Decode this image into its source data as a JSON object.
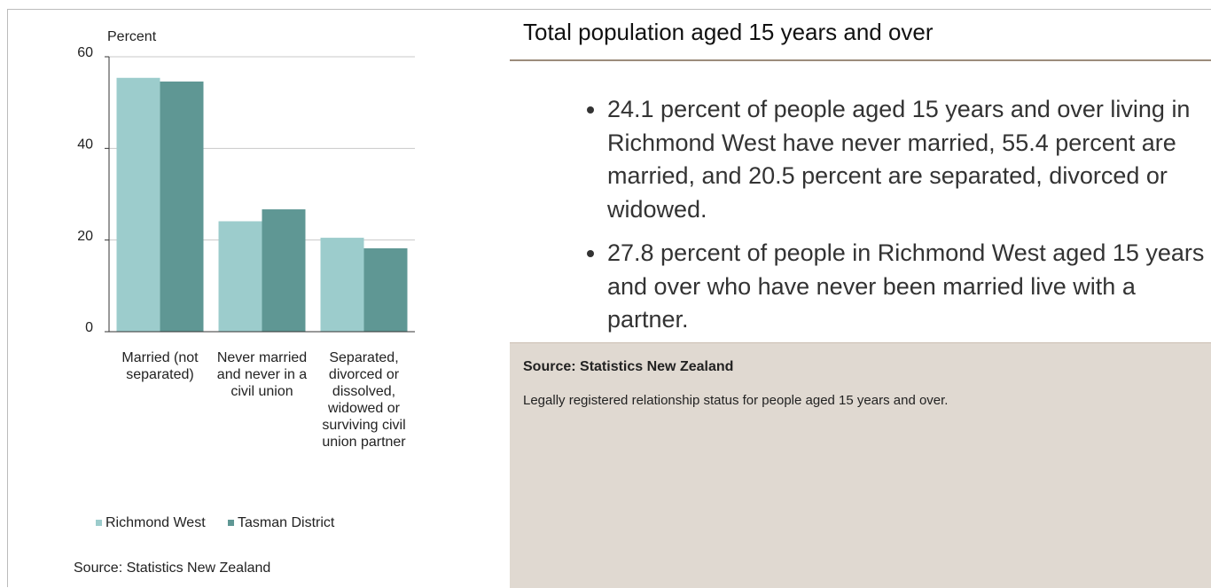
{
  "chart_data": {
    "type": "bar",
    "y_label": "Percent",
    "categories": [
      "Married (not separated)",
      "Never married and never in a civil union",
      "Separated, divorced or dissolved, widowed or surviving civil union partner"
    ],
    "series": [
      {
        "name": "Richmond West",
        "color": "#9ccccc",
        "values": [
          55.4,
          24.1,
          20.5
        ]
      },
      {
        "name": "Tasman District",
        "color": "#5f9794",
        "values": [
          54.6,
          26.7,
          18.2
        ]
      }
    ],
    "ylim": [
      0,
      60
    ],
    "yticks": [
      0,
      20,
      40,
      60
    ],
    "grid": true,
    "source": "Source: Statistics New Zealand"
  },
  "panel": {
    "title": "Total population aged 15 years and over",
    "bullets": [
      "24.1 percent of people aged 15 years and over living in Richmond West have never married, 55.4 percent are married, and 20.5 percent are separated, divorced or widowed.",
      "27.8 percent of people in Richmond West aged 15 years and over who have never been married live with a partner."
    ],
    "note": {
      "source": "Source: Statistics New Zealand",
      "text": "Legally registered relationship status for people aged 15 years and over."
    }
  }
}
